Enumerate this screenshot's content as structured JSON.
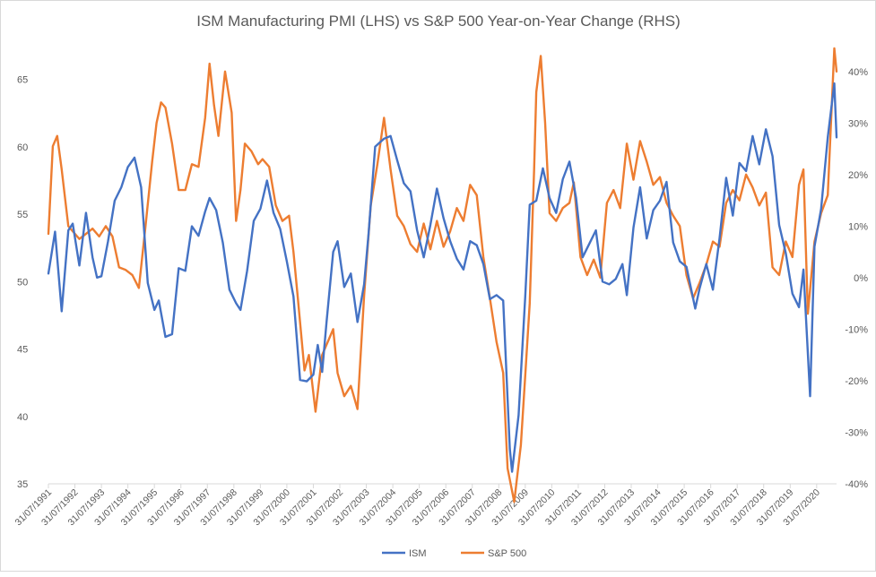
{
  "chart_data": {
    "type": "line",
    "title": "ISM Manufacturing PMI (LHS) vs S&P 500 Year-on-Year Change (RHS)",
    "x_tick_labels": [
      "31/07/1991",
      "31/07/1992",
      "31/07/1993",
      "31/07/1994",
      "31/07/1995",
      "31/07/1996",
      "31/07/1997",
      "31/07/1998",
      "31/07/1999",
      "31/07/2000",
      "31/07/2001",
      "31/07/2002",
      "31/07/2003",
      "31/07/2004",
      "31/07/2005",
      "31/07/2006",
      "31/07/2007",
      "31/07/2008",
      "31/07/2009",
      "31/07/2010",
      "31/07/2011",
      "31/07/2012",
      "31/07/2013",
      "31/07/2014",
      "31/07/2015",
      "31/07/2016",
      "31/07/2017",
      "31/07/2018",
      "31/07/2019",
      "31/07/2020"
    ],
    "x_start": "1991-07",
    "x_end": "2021-04",
    "y_left": {
      "min": 35,
      "max": 67.5,
      "ticks": [
        35,
        40,
        45,
        50,
        55,
        60,
        65
      ],
      "tick_labels": [
        "35",
        "40",
        "45",
        "50",
        "55",
        "60",
        "65"
      ]
    },
    "y_right": {
      "min": -40,
      "max": 45,
      "ticks": [
        -40,
        -30,
        -20,
        -10,
        0,
        10,
        20,
        30,
        40
      ],
      "tick_labels": [
        "-40%",
        "-30%",
        "-20%",
        "-10%",
        "0%",
        "10%",
        "20%",
        "30%",
        "40%"
      ]
    },
    "grid": false,
    "legend_position": "bottom",
    "series": [
      {
        "name": "ISM",
        "axis": "left",
        "color": "#4472C4",
        "points": [
          [
            "1991-07",
            50.6
          ],
          [
            "1991-10",
            53.7
          ],
          [
            "1992-01",
            47.8
          ],
          [
            "1992-04",
            53.8
          ],
          [
            "1992-06",
            54.3
          ],
          [
            "1992-09",
            51.2
          ],
          [
            "1992-12",
            55.1
          ],
          [
            "1993-03",
            51.8
          ],
          [
            "1993-05",
            50.3
          ],
          [
            "1993-07",
            50.4
          ],
          [
            "1993-10",
            53.0
          ],
          [
            "1994-01",
            56.0
          ],
          [
            "1994-04",
            57.0
          ],
          [
            "1994-07",
            58.5
          ],
          [
            "1994-10",
            59.2
          ],
          [
            "1995-01",
            57.0
          ],
          [
            "1995-04",
            49.9
          ],
          [
            "1995-07",
            47.9
          ],
          [
            "1995-09",
            48.6
          ],
          [
            "1995-12",
            45.9
          ],
          [
            "1996-03",
            46.1
          ],
          [
            "1996-06",
            51.0
          ],
          [
            "1996-09",
            50.8
          ],
          [
            "1996-12",
            54.1
          ],
          [
            "1997-03",
            53.4
          ],
          [
            "1997-06",
            55.2
          ],
          [
            "1997-08",
            56.2
          ],
          [
            "1997-11",
            55.3
          ],
          [
            "1998-02",
            52.9
          ],
          [
            "1998-05",
            49.4
          ],
          [
            "1998-08",
            48.4
          ],
          [
            "1998-10",
            47.9
          ],
          [
            "1999-01",
            50.8
          ],
          [
            "1999-04",
            54.5
          ],
          [
            "1999-07",
            55.4
          ],
          [
            "1999-10",
            57.5
          ],
          [
            "2000-01",
            55.1
          ],
          [
            "2000-04",
            53.9
          ],
          [
            "2000-07",
            51.5
          ],
          [
            "2000-10",
            48.9
          ],
          [
            "2001-01",
            42.7
          ],
          [
            "2001-04",
            42.6
          ],
          [
            "2001-07",
            43.1
          ],
          [
            "2001-09",
            45.3
          ],
          [
            "2001-11",
            43.3
          ],
          [
            "2002-01",
            47.0
          ],
          [
            "2002-04",
            52.2
          ],
          [
            "2002-06",
            53.0
          ],
          [
            "2002-09",
            49.6
          ],
          [
            "2002-12",
            50.6
          ],
          [
            "2003-03",
            47.0
          ],
          [
            "2003-06",
            49.8
          ],
          [
            "2003-08",
            53.5
          ],
          [
            "2003-11",
            60.0
          ],
          [
            "2004-01",
            60.3
          ],
          [
            "2004-03",
            60.6
          ],
          [
            "2004-06",
            60.8
          ],
          [
            "2004-09",
            59.0
          ],
          [
            "2004-12",
            57.3
          ],
          [
            "2005-03",
            56.7
          ],
          [
            "2005-06",
            53.8
          ],
          [
            "2005-09",
            51.8
          ],
          [
            "2005-12",
            54.2
          ],
          [
            "2006-03",
            56.9
          ],
          [
            "2006-06",
            54.7
          ],
          [
            "2006-09",
            53.0
          ],
          [
            "2006-12",
            51.7
          ],
          [
            "2007-03",
            50.9
          ],
          [
            "2007-06",
            53.0
          ],
          [
            "2007-09",
            52.7
          ],
          [
            "2007-12",
            51.3
          ],
          [
            "2008-03",
            48.7
          ],
          [
            "2008-06",
            49.0
          ],
          [
            "2008-09",
            48.6
          ],
          [
            "2008-12",
            37.6
          ],
          [
            "2009-01",
            35.9
          ],
          [
            "2009-04",
            40.1
          ],
          [
            "2009-07",
            48.9
          ],
          [
            "2009-09",
            55.7
          ],
          [
            "2009-12",
            56.0
          ],
          [
            "2010-03",
            58.4
          ],
          [
            "2010-06",
            56.2
          ],
          [
            "2010-09",
            55.1
          ],
          [
            "2010-12",
            57.6
          ],
          [
            "2011-03",
            58.9
          ],
          [
            "2011-06",
            56.2
          ],
          [
            "2011-09",
            51.8
          ],
          [
            "2011-12",
            52.8
          ],
          [
            "2012-03",
            53.8
          ],
          [
            "2012-06",
            50.0
          ],
          [
            "2012-09",
            49.8
          ],
          [
            "2012-12",
            50.2
          ],
          [
            "2013-03",
            51.3
          ],
          [
            "2013-05",
            49.0
          ],
          [
            "2013-08",
            54.0
          ],
          [
            "2013-11",
            57.0
          ],
          [
            "2014-02",
            53.2
          ],
          [
            "2014-05",
            55.3
          ],
          [
            "2014-08",
            56.0
          ],
          [
            "2014-11",
            57.4
          ],
          [
            "2015-02",
            52.9
          ],
          [
            "2015-05",
            51.5
          ],
          [
            "2015-08",
            51.1
          ],
          [
            "2015-12",
            48.0
          ],
          [
            "2016-02",
            49.5
          ],
          [
            "2016-05",
            51.3
          ],
          [
            "2016-08",
            49.4
          ],
          [
            "2016-11",
            53.2
          ],
          [
            "2017-02",
            57.7
          ],
          [
            "2017-05",
            54.9
          ],
          [
            "2017-08",
            58.8
          ],
          [
            "2017-11",
            58.2
          ],
          [
            "2018-02",
            60.8
          ],
          [
            "2018-05",
            58.7
          ],
          [
            "2018-08",
            61.3
          ],
          [
            "2018-11",
            59.3
          ],
          [
            "2019-02",
            54.2
          ],
          [
            "2019-05",
            52.1
          ],
          [
            "2019-08",
            49.1
          ],
          [
            "2019-11",
            48.1
          ],
          [
            "2020-01",
            50.9
          ],
          [
            "2020-04",
            41.5
          ],
          [
            "2020-06",
            52.6
          ],
          [
            "2020-09",
            55.4
          ],
          [
            "2020-12",
            60.7
          ],
          [
            "2021-03",
            64.7
          ],
          [
            "2021-04",
            60.7
          ]
        ]
      },
      {
        "name": "S&P 500",
        "axis": "right",
        "color": "#ED7D31",
        "points": [
          [
            "1991-07",
            8.5
          ],
          [
            "1991-09",
            25.5
          ],
          [
            "1991-11",
            27.5
          ],
          [
            "1992-01",
            21.0
          ],
          [
            "1992-04",
            10.0
          ],
          [
            "1992-06",
            9.0
          ],
          [
            "1992-09",
            7.5
          ],
          [
            "1992-12",
            8.5
          ],
          [
            "1993-03",
            9.5
          ],
          [
            "1993-06",
            8.0
          ],
          [
            "1993-09",
            10.0
          ],
          [
            "1993-12",
            8.0
          ],
          [
            "1994-03",
            2.0
          ],
          [
            "1994-06",
            1.5
          ],
          [
            "1994-09",
            0.5
          ],
          [
            "1994-12",
            -2.0
          ],
          [
            "1995-03",
            10.0
          ],
          [
            "1995-06",
            22.5
          ],
          [
            "1995-08",
            30.0
          ],
          [
            "1995-10",
            34.0
          ],
          [
            "1995-12",
            33.0
          ],
          [
            "1996-03",
            26.0
          ],
          [
            "1996-06",
            17.0
          ],
          [
            "1996-09",
            17.0
          ],
          [
            "1996-12",
            22.0
          ],
          [
            "1997-03",
            21.5
          ],
          [
            "1997-06",
            31.0
          ],
          [
            "1997-08",
            41.5
          ],
          [
            "1997-10",
            33.5
          ],
          [
            "1997-12",
            27.5
          ],
          [
            "1998-03",
            40.0
          ],
          [
            "1998-06",
            32.0
          ],
          [
            "1998-08",
            11.0
          ],
          [
            "1998-10",
            17.0
          ],
          [
            "1998-12",
            26.0
          ],
          [
            "1999-03",
            24.5
          ],
          [
            "1999-06",
            22.0
          ],
          [
            "1999-08",
            23.0
          ],
          [
            "1999-11",
            21.5
          ],
          [
            "2000-02",
            14.0
          ],
          [
            "2000-05",
            11.0
          ],
          [
            "2000-08",
            12.0
          ],
          [
            "2000-10",
            5.0
          ],
          [
            "2000-12",
            -4.0
          ],
          [
            "2001-03",
            -18.0
          ],
          [
            "2001-05",
            -15.0
          ],
          [
            "2001-08",
            -26.0
          ],
          [
            "2001-11",
            -15.0
          ],
          [
            "2002-02",
            -12.0
          ],
          [
            "2002-04",
            -10.0
          ],
          [
            "2002-06",
            -18.5
          ],
          [
            "2002-09",
            -23.0
          ],
          [
            "2002-12",
            -21.0
          ],
          [
            "2003-03",
            -25.5
          ],
          [
            "2003-06",
            -3.5
          ],
          [
            "2003-09",
            14.0
          ],
          [
            "2003-12",
            22.0
          ],
          [
            "2004-03",
            31.0
          ],
          [
            "2004-06",
            21.0
          ],
          [
            "2004-09",
            12.0
          ],
          [
            "2004-12",
            10.0
          ],
          [
            "2005-03",
            6.5
          ],
          [
            "2005-06",
            5.0
          ],
          [
            "2005-09",
            10.5
          ],
          [
            "2005-12",
            5.5
          ],
          [
            "2006-03",
            11.0
          ],
          [
            "2006-06",
            6.0
          ],
          [
            "2006-09",
            9.0
          ],
          [
            "2006-12",
            13.5
          ],
          [
            "2007-03",
            11.0
          ],
          [
            "2007-06",
            18.0
          ],
          [
            "2007-09",
            16.0
          ],
          [
            "2007-12",
            4.0
          ],
          [
            "2008-03",
            -4.0
          ],
          [
            "2008-06",
            -12.5
          ],
          [
            "2008-09",
            -18.5
          ],
          [
            "2008-11",
            -37.0
          ],
          [
            "2009-02",
            -43.5
          ],
          [
            "2009-05",
            -32.5
          ],
          [
            "2009-07",
            -19.0
          ],
          [
            "2009-09",
            -5.0
          ],
          [
            "2009-11",
            21.0
          ],
          [
            "2009-12",
            36.0
          ],
          [
            "2010-02",
            43.0
          ],
          [
            "2010-04",
            30.0
          ],
          [
            "2010-06",
            12.5
          ],
          [
            "2010-09",
            11.0
          ],
          [
            "2010-12",
            13.5
          ],
          [
            "2011-03",
            14.5
          ],
          [
            "2011-05",
            18.5
          ],
          [
            "2011-08",
            4.0
          ],
          [
            "2011-11",
            0.5
          ],
          [
            "2012-02",
            3.5
          ],
          [
            "2012-05",
            0.0
          ],
          [
            "2012-08",
            14.5
          ],
          [
            "2012-11",
            17.0
          ],
          [
            "2013-02",
            13.5
          ],
          [
            "2013-05",
            26.0
          ],
          [
            "2013-08",
            19.0
          ],
          [
            "2013-11",
            26.5
          ],
          [
            "2014-02",
            22.5
          ],
          [
            "2014-05",
            18.0
          ],
          [
            "2014-08",
            19.5
          ],
          [
            "2014-11",
            14.5
          ],
          [
            "2015-02",
            12.0
          ],
          [
            "2015-05",
            10.0
          ],
          [
            "2015-08",
            0.5
          ],
          [
            "2015-11",
            -4.0
          ],
          [
            "2016-02",
            -1.0
          ],
          [
            "2016-05",
            2.5
          ],
          [
            "2016-08",
            7.0
          ],
          [
            "2016-11",
            6.0
          ],
          [
            "2017-02",
            14.5
          ],
          [
            "2017-05",
            17.0
          ],
          [
            "2017-08",
            15.0
          ],
          [
            "2017-11",
            20.0
          ],
          [
            "2018-02",
            17.5
          ],
          [
            "2018-05",
            14.0
          ],
          [
            "2018-08",
            16.5
          ],
          [
            "2018-11",
            2.0
          ],
          [
            "2019-02",
            0.5
          ],
          [
            "2019-05",
            7.0
          ],
          [
            "2019-08",
            4.0
          ],
          [
            "2019-11",
            18.0
          ],
          [
            "2020-01",
            21.0
          ],
          [
            "2020-03",
            -7.0
          ],
          [
            "2020-06",
            7.0
          ],
          [
            "2020-09",
            12.5
          ],
          [
            "2020-12",
            16.0
          ],
          [
            "2021-03",
            44.5
          ],
          [
            "2021-04",
            40.0
          ]
        ]
      }
    ]
  }
}
